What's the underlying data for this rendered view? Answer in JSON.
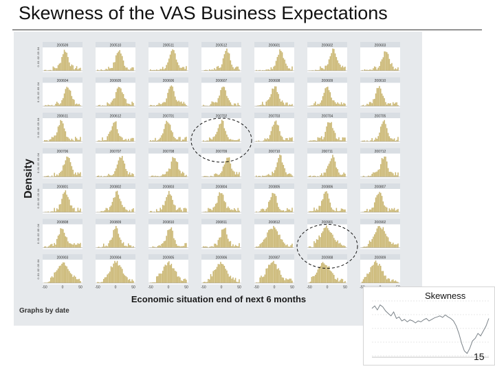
{
  "slide": {
    "title": "Skewness of the VAS Business Expectations",
    "page_number": "15"
  },
  "figure": {
    "y_label": "Density",
    "x_label": "Economic situation end of next 6 months",
    "footer": "Graphs by date",
    "panel_color": "#c9b56f",
    "panels": [
      {
        "label": "200509"
      },
      {
        "label": "200510"
      },
      {
        "label": "200511"
      },
      {
        "label": "200512"
      },
      {
        "label": "200601"
      },
      {
        "label": "200602"
      },
      {
        "label": "200603"
      },
      {
        "label": "200604"
      },
      {
        "label": "200605"
      },
      {
        "label": "200606"
      },
      {
        "label": "200607"
      },
      {
        "label": "200608"
      },
      {
        "label": "200609"
      },
      {
        "label": "200610"
      },
      {
        "label": "200611"
      },
      {
        "label": "200612"
      },
      {
        "label": "200701"
      },
      {
        "label": "200702"
      },
      {
        "label": "200703"
      },
      {
        "label": "200704"
      },
      {
        "label": "200705"
      },
      {
        "label": "200706"
      },
      {
        "label": "200707"
      },
      {
        "label": "200708"
      },
      {
        "label": "200709"
      },
      {
        "label": "200710"
      },
      {
        "label": "200711"
      },
      {
        "label": "200712"
      },
      {
        "label": "200801"
      },
      {
        "label": "200802"
      },
      {
        "label": "200803"
      },
      {
        "label": "200804"
      },
      {
        "label": "200805"
      },
      {
        "label": "200806"
      },
      {
        "label": "200807"
      },
      {
        "label": "200808"
      },
      {
        "label": "200809"
      },
      {
        "label": "200810"
      },
      {
        "label": "200811"
      },
      {
        "label": "200812"
      },
      {
        "label": "200901"
      },
      {
        "label": "200902"
      },
      {
        "label": "200903"
      },
      {
        "label": "200904"
      },
      {
        "label": "200905"
      },
      {
        "label": "200906"
      },
      {
        "label": "200907"
      },
      {
        "label": "200908"
      },
      {
        "label": "200909"
      }
    ],
    "highlighted_panels": [
      "200702",
      "200901"
    ],
    "x_tick_labels": [
      "-50",
      "0",
      "50"
    ],
    "y_tick_label": "0 .01 .02 .03 .04"
  },
  "inset": {
    "title": "Skewness",
    "line_color": "#7a8288",
    "skewness_series": [
      0.55,
      0.6,
      0.52,
      0.62,
      0.58,
      0.5,
      0.45,
      0.4,
      0.48,
      0.35,
      0.38,
      0.3,
      0.33,
      0.28,
      0.32,
      0.3,
      0.26,
      0.3,
      0.28,
      0.32,
      0.35,
      0.3,
      0.33,
      0.36,
      0.38,
      0.4,
      0.37,
      0.42,
      0.38,
      0.35,
      0.3,
      0.2,
      0.05,
      -0.15,
      -0.3,
      -0.35,
      -0.25,
      -0.1,
      -0.05,
      0.05,
      0.0,
      0.1,
      0.2,
      0.35
    ]
  }
}
